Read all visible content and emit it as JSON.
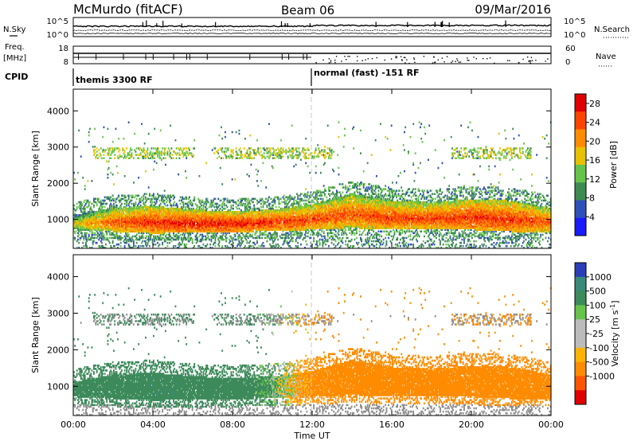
{
  "header": {
    "station": "McMurdo (fitACF)",
    "beam": "Beam 06",
    "date": "09/Mar/2016"
  },
  "noise_panel": {
    "left_label": "N.Sky",
    "right_label": "N.Search",
    "left_ticks": [
      "10^5",
      "10^0"
    ],
    "right_ticks": [
      "10^5",
      "10^0"
    ]
  },
  "freq_panel": {
    "left_label_1": "Freq.",
    "left_label_2": "[MHz]",
    "right_label": "Nave",
    "left_ticks": [
      "18",
      "8"
    ],
    "right_ticks": [
      "60",
      "0"
    ]
  },
  "cpid": {
    "label": "CPID",
    "segments": [
      {
        "start_hour": 0,
        "name": "themis 3300 RF"
      },
      {
        "start_hour": 12,
        "name": "normal (fast) -151 RF"
      }
    ]
  },
  "colors": {
    "power_scale": [
      "#1a1aff",
      "#2f50b8",
      "#3d8a52",
      "#66c44a",
      "#e6c200",
      "#ff8c00",
      "#ff4400",
      "#e00000"
    ],
    "velocity_scale": [
      "#2b3fb8",
      "#3a8a7a",
      "#3d8a5a",
      "#66c44a",
      "#bcbcbc",
      "#bcbcbc",
      "#ffb300",
      "#ff8c00",
      "#ff5500",
      "#e00000"
    ],
    "ground_scatter": "#8c8c8c",
    "midnight_line": "#c8c8c8"
  },
  "chart_data": [
    {
      "type": "heatmap",
      "name": "power",
      "xlabel": "",
      "ylabel": "Slant Range [km]",
      "x_ticks": [
        "00:00",
        "04:00",
        "08:00",
        "12:00",
        "16:00",
        "20:00",
        "00:00"
      ],
      "xlim_hours": [
        0,
        24
      ],
      "ylim": [
        200,
        4600
      ],
      "y_ticks": [
        1000,
        2000,
        3000,
        4000
      ],
      "colorbar_label": "Power [dB]",
      "colorbar_ticks": [
        4,
        8,
        12,
        16,
        20,
        24,
        28
      ],
      "colorbar_range": [
        0,
        30
      ],
      "main_band": [
        {
          "t": 0,
          "low": 700,
          "high": 1100,
          "peak": 18
        },
        {
          "t": 2,
          "low": 650,
          "high": 1300,
          "peak": 24
        },
        {
          "t": 4,
          "low": 600,
          "high": 1350,
          "peak": 26
        },
        {
          "t": 6,
          "low": 620,
          "high": 1250,
          "peak": 27
        },
        {
          "t": 8,
          "low": 640,
          "high": 1200,
          "peak": 27
        },
        {
          "t": 10,
          "low": 660,
          "high": 1250,
          "peak": 26
        },
        {
          "t": 12,
          "low": 700,
          "high": 1400,
          "peak": 25
        },
        {
          "t": 14,
          "low": 750,
          "high": 1700,
          "peak": 24
        },
        {
          "t": 16,
          "low": 700,
          "high": 1500,
          "peak": 25
        },
        {
          "t": 18,
          "low": 720,
          "high": 1450,
          "peak": 25
        },
        {
          "t": 20,
          "low": 700,
          "high": 1550,
          "peak": 26
        },
        {
          "t": 22,
          "low": 650,
          "high": 1500,
          "peak": 26
        },
        {
          "t": 24,
          "low": 650,
          "high": 1300,
          "peak": 24
        }
      ],
      "upper_band": {
        "low": 2650,
        "high": 2950,
        "level": 14
      }
    },
    {
      "type": "heatmap",
      "name": "velocity",
      "xlabel": "Time UT",
      "ylabel": "Slant Range [km]",
      "x_ticks": [
        "00:00",
        "04:00",
        "08:00",
        "12:00",
        "16:00",
        "20:00",
        "00:00"
      ],
      "xlim_hours": [
        0,
        24
      ],
      "ylim": [
        200,
        4600
      ],
      "y_ticks": [
        1000,
        2000,
        3000,
        4000
      ],
      "colorbar_label": "Velocity [m s^-1]",
      "colorbar_ticks": [
        "1000",
        "500",
        "100",
        "25",
        "-25",
        "-100",
        "-500",
        "-1000"
      ],
      "velocity_by_hour": [
        {
          "t": 0,
          "v": 300
        },
        {
          "t": 4,
          "v": 400
        },
        {
          "t": 8,
          "v": 350
        },
        {
          "t": 10,
          "v": 100
        },
        {
          "t": 12,
          "v": -200
        },
        {
          "t": 16,
          "v": -300
        },
        {
          "t": 20,
          "v": -350
        },
        {
          "t": 24,
          "v": -300
        }
      ]
    }
  ]
}
